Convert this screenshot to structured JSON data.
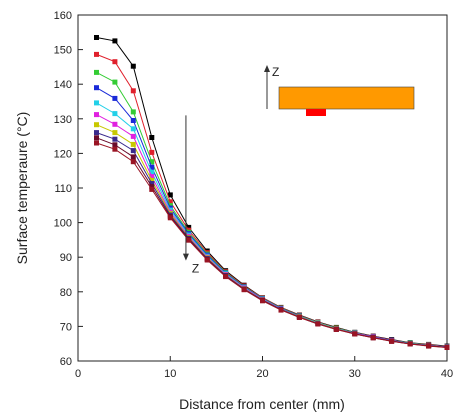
{
  "chart_data": {
    "type": "line",
    "xlabel": "Distance from center (mm)",
    "ylabel": "Surface temperaure (°C)",
    "xlim": [
      0,
      40
    ],
    "ylim": [
      60,
      160
    ],
    "xticks": [
      0,
      10,
      20,
      30,
      40
    ],
    "yticks": [
      60,
      70,
      80,
      90,
      100,
      110,
      120,
      130,
      140,
      150,
      160
    ],
    "grid": false,
    "legend": "none",
    "x": [
      2,
      4,
      6,
      8,
      10,
      12,
      14,
      16,
      18,
      20,
      22,
      24,
      26,
      28,
      30,
      32,
      34,
      36,
      38,
      40
    ],
    "series": [
      {
        "color": "#000000",
        "marker": "square",
        "values": [
          153.5,
          152.5,
          145.2,
          124.6,
          108.0,
          98.6,
          91.8,
          86.1,
          81.9,
          78.3,
          75.5,
          73.3,
          71.3,
          69.7,
          68.3,
          67.2,
          66.2,
          65.3,
          64.8,
          64.3
        ]
      },
      {
        "color": "#e0202c",
        "marker": "square",
        "values": [
          148.6,
          146.5,
          138.1,
          120.3,
          106.0,
          97.8,
          91.3,
          85.8,
          81.7,
          78.2,
          75.4,
          73.2,
          71.2,
          69.6,
          68.2,
          67.1,
          66.1,
          65.2,
          64.7,
          64.2
        ]
      },
      {
        "color": "#33cc33",
        "marker": "square",
        "values": [
          143.4,
          140.6,
          132.0,
          117.6,
          104.9,
          97.2,
          90.9,
          85.6,
          81.5,
          78.1,
          75.3,
          73.1,
          71.1,
          69.5,
          68.2,
          67.0,
          66.0,
          65.2,
          64.6,
          64.1
        ]
      },
      {
        "color": "#1a2ad8",
        "marker": "square",
        "values": [
          139.0,
          135.9,
          129.5,
          116.0,
          104.2,
          96.8,
          90.6,
          85.4,
          81.4,
          78.0,
          75.2,
          73.0,
          71.0,
          69.4,
          68.1,
          67.0,
          66.0,
          65.1,
          64.5,
          64.1
        ]
      },
      {
        "color": "#22d0e8",
        "marker": "square",
        "values": [
          134.6,
          131.5,
          127.1,
          114.5,
          103.6,
          96.4,
          90.3,
          85.2,
          81.2,
          77.9,
          75.1,
          72.9,
          71.0,
          69.4,
          68.0,
          66.9,
          65.9,
          65.1,
          64.5,
          64.0
        ]
      },
      {
        "color": "#e020e0",
        "marker": "square",
        "values": [
          131.2,
          128.4,
          124.9,
          113.3,
          103.0,
          96.0,
          90.0,
          85.0,
          81.1,
          77.8,
          75.0,
          72.8,
          70.9,
          69.3,
          68.0,
          66.9,
          65.9,
          65.0,
          64.5,
          64.0
        ]
      },
      {
        "color": "#c8c800",
        "marker": "square",
        "values": [
          128.3,
          126.0,
          122.6,
          112.2,
          102.6,
          95.7,
          89.8,
          84.8,
          80.9,
          77.7,
          74.9,
          72.8,
          70.9,
          69.3,
          67.9,
          66.8,
          65.8,
          65.0,
          64.4,
          64.0
        ]
      },
      {
        "color": "#3a2a8c",
        "marker": "square",
        "values": [
          126.0,
          124.1,
          120.8,
          111.3,
          102.2,
          95.5,
          89.6,
          84.7,
          80.8,
          77.6,
          74.9,
          72.7,
          70.8,
          69.2,
          67.9,
          66.8,
          65.8,
          65.0,
          64.4,
          64.0
        ]
      },
      {
        "color": "#6a0a2a",
        "marker": "square",
        "values": [
          124.5,
          122.5,
          119.0,
          110.4,
          101.8,
          95.2,
          89.4,
          84.5,
          80.7,
          77.5,
          74.8,
          72.6,
          70.7,
          69.2,
          67.8,
          66.7,
          65.7,
          64.9,
          64.4,
          63.9
        ]
      },
      {
        "color": "#9a1424",
        "marker": "square",
        "values": [
          123.0,
          121.2,
          117.6,
          109.6,
          101.4,
          94.9,
          89.2,
          84.4,
          80.6,
          77.4,
          74.7,
          72.6,
          70.7,
          69.1,
          67.8,
          66.7,
          65.7,
          64.9,
          64.3,
          63.9
        ]
      }
    ],
    "annotations": [
      {
        "text": "Z",
        "kind": "arrow-down",
        "x": 11.7,
        "y_start": 131,
        "y_end": 89
      },
      {
        "text": "Z",
        "kind": "inset-arrow-up"
      }
    ],
    "inset": {
      "plate_color": "#ff9900",
      "heater_color": "#ff0000"
    }
  }
}
